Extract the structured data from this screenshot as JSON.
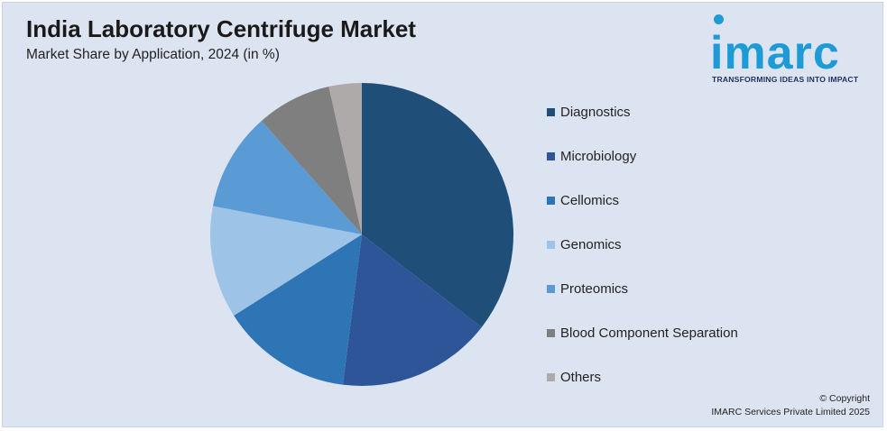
{
  "title": "India Laboratory Centrifuge Market",
  "subtitle": "Market Share by Application, 2024 (in %)",
  "logo": {
    "word": "imarc",
    "tagline": "TRANSFORMING IDEAS INTO IMPACT",
    "color": "#1e9bd7"
  },
  "footer": {
    "line1": "© Copyright",
    "line2": "IMARC Services Private Limited 2025"
  },
  "chart_data": {
    "type": "pie",
    "start": "12 o'clock, clockwise",
    "legend_position": "right",
    "categories": [
      "Diagnostics",
      "Microbiology",
      "Cellomics",
      "Genomics",
      "Proteomics",
      "Blood Component Separation",
      "Others"
    ],
    "values": [
      35.5,
      16.5,
      14,
      12,
      10.5,
      8,
      3.5
    ],
    "colors": [
      "#1f4e79",
      "#2e5597",
      "#2e75b6",
      "#9dc3e6",
      "#5b9bd5",
      "#7f7f7f",
      "#aeaaaa"
    ]
  }
}
